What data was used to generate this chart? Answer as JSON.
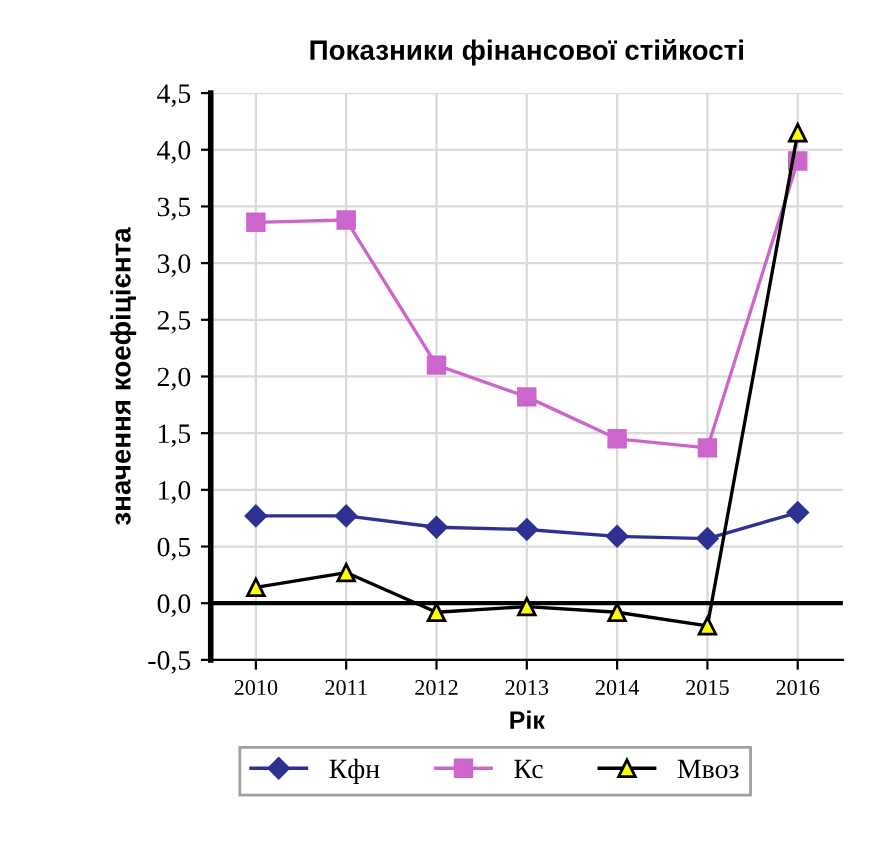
{
  "chart_data": {
    "type": "line",
    "title": "Показники фінансової стійкості",
    "xlabel": "Рік",
    "ylabel": "значення коефіцієнта",
    "categories": [
      "2010",
      "2011",
      "2012",
      "2013",
      "2014",
      "2015",
      "2016"
    ],
    "series": [
      {
        "name": "Кфн",
        "color": "#2e3192",
        "marker": "diamond",
        "values": [
          0.77,
          0.77,
          0.67,
          0.65,
          0.59,
          0.57,
          0.8
        ]
      },
      {
        "name": "Кс",
        "color": "#cc66cc",
        "marker": "square",
        "values": [
          3.36,
          3.38,
          2.1,
          1.82,
          1.45,
          1.37,
          3.9
        ]
      },
      {
        "name": "Мвоз",
        "color": "#000000",
        "marker": "triangle",
        "values": [
          0.14,
          0.27,
          -0.08,
          -0.03,
          -0.08,
          -0.2,
          4.15
        ]
      }
    ],
    "ylim": [
      -0.5,
      4.5
    ],
    "yticks": [
      {
        "value": -0.5,
        "label": "-0,5"
      },
      {
        "value": 0,
        "label": "0,0"
      },
      {
        "value": 0.5,
        "label": "0,5"
      },
      {
        "value": 1,
        "label": "1,0"
      },
      {
        "value": 1.5,
        "label": "1,5"
      },
      {
        "value": 2,
        "label": "2,0"
      },
      {
        "value": 2.5,
        "label": "2,5"
      },
      {
        "value": 3,
        "label": "3,0"
      },
      {
        "value": 3.5,
        "label": "3,5"
      },
      {
        "value": 4,
        "label": "4,0"
      },
      {
        "value": 4.5,
        "label": "4,5"
      }
    ],
    "grid": true,
    "legend": "bottom"
  }
}
